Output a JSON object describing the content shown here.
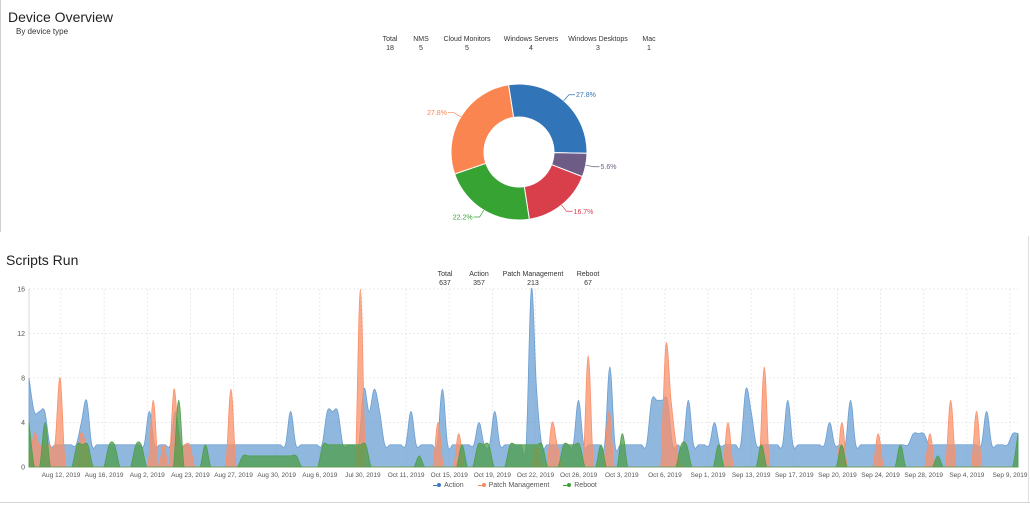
{
  "device_overview": {
    "title": "Device Overview",
    "subtitle": "By device type",
    "stats": [
      {
        "label": "Total",
        "value": "18"
      },
      {
        "label": "NMS",
        "value": "5"
      },
      {
        "label": "Cloud Monitors",
        "value": "5"
      },
      {
        "label": "Windows Servers",
        "value": "4"
      },
      {
        "label": "Windows Desktops",
        "value": "3"
      },
      {
        "label": "Mac",
        "value": "1"
      }
    ]
  },
  "scripts_run": {
    "title": "Scripts Run",
    "stats": [
      {
        "label": "Total",
        "value": "637"
      },
      {
        "label": "Action",
        "value": "357"
      },
      {
        "label": "Patch Management",
        "value": "213"
      },
      {
        "label": "Reboot",
        "value": "67"
      }
    ],
    "legend": [
      {
        "label": "Action",
        "color": "#3a7bbf"
      },
      {
        "label": "Patch Management",
        "color": "#f9875a"
      },
      {
        "label": "Reboot",
        "color": "#3ba335"
      }
    ]
  },
  "chart_data": [
    {
      "type": "pie",
      "donut": true,
      "slices": [
        {
          "value": 27.8,
          "label": "27.8%",
          "color": "#3274b8"
        },
        {
          "value": 5.6,
          "label": "5.6%",
          "color": "#6d5c85"
        },
        {
          "value": 16.7,
          "label": "16.7%",
          "color": "#d93e4b"
        },
        {
          "value": 22.2,
          "label": "22.2%",
          "color": "#36a333"
        },
        {
          "value": 27.8,
          "label": "27.8%",
          "color": "#fb8550"
        }
      ]
    },
    {
      "type": "area",
      "ylim": [
        0,
        16
      ],
      "yticks": [
        0,
        4,
        8,
        12,
        16
      ],
      "grid": true,
      "legend_position": "bottom",
      "x_tick_labels": [
        "Aug 12, 2019",
        "Aug 16, 2019",
        "Aug 2, 2019",
        "Aug 23, 2019",
        "Aug 27, 2019",
        "Aug 30, 2019",
        "Aug 6, 2019",
        "Jul 30, 2019",
        "Oct 11, 2019",
        "Oct 15, 2019",
        "Oct 19, 2019",
        "Oct 22, 2019",
        "Oct 26, 2019",
        "Oct 3, 2019",
        "Oct 6, 2019",
        "Sep 1, 2019",
        "Sep 13, 2019",
        "Sep 17, 2019",
        "Sep 20, 2019",
        "Sep 24, 2019",
        "Sep 28, 2019",
        "Sep 4, 2019",
        "Sep 9, 2019"
      ],
      "series": [
        {
          "name": "Action",
          "color": "#6b9fd3",
          "values": [
            8,
            5,
            5,
            5,
            2,
            2,
            2,
            2,
            2,
            2,
            4,
            6,
            2,
            2,
            2,
            2,
            2,
            2,
            2,
            2,
            2,
            2,
            2,
            5,
            2,
            2,
            2,
            2,
            5,
            2,
            2,
            2,
            2,
            2,
            2,
            2,
            2,
            2,
            2,
            2,
            2,
            2,
            2,
            2,
            2,
            2,
            2,
            2,
            2,
            2,
            5,
            2,
            2,
            2,
            2,
            2,
            2,
            5,
            5,
            5,
            2,
            2,
            2,
            2,
            7,
            5,
            7,
            5,
            2,
            2,
            2,
            2,
            2,
            5,
            2,
            2,
            2,
            2,
            2,
            7,
            2,
            2,
            2,
            2,
            2,
            2,
            4,
            2,
            2,
            5,
            2,
            2,
            2,
            2,
            2,
            2,
            16,
            7,
            2,
            2,
            2,
            2,
            2,
            2,
            2,
            6,
            2,
            2,
            2,
            2,
            2,
            9,
            2,
            2,
            2,
            2,
            2,
            2,
            2,
            6,
            6,
            6,
            6,
            2,
            2,
            2,
            6,
            2,
            2,
            2,
            2,
            4,
            2,
            2,
            2,
            2,
            2,
            7,
            5,
            2,
            2,
            2,
            2,
            2,
            2,
            6,
            2,
            2,
            2,
            2,
            2,
            2,
            2,
            4,
            2,
            2,
            2,
            6,
            2,
            2,
            2,
            2,
            2,
            2,
            2,
            2,
            2,
            2,
            2,
            3,
            3,
            3,
            2,
            2,
            2,
            2,
            2,
            2,
            2,
            2,
            2,
            2,
            2,
            5,
            2,
            2,
            2,
            2,
            3,
            3
          ]
        },
        {
          "name": "Patch Management",
          "color": "#f9906a",
          "values": [
            0,
            3,
            2,
            2,
            2,
            2,
            8,
            0,
            0,
            0,
            3,
            2,
            0,
            0,
            0,
            0,
            0,
            0,
            0,
            0,
            0,
            0,
            0,
            0,
            6,
            0,
            2,
            0,
            7,
            2,
            2,
            2,
            0,
            0,
            0,
            0,
            0,
            0,
            0,
            7,
            0,
            0,
            0,
            0,
            0,
            0,
            0,
            0,
            0,
            0,
            0,
            0,
            0,
            0,
            0,
            0,
            0,
            0,
            0,
            0,
            0,
            0,
            0,
            0,
            16,
            0,
            0,
            0,
            0,
            0,
            0,
            0,
            0,
            0,
            0,
            0,
            0,
            0,
            0,
            4,
            0,
            0,
            0,
            3,
            0,
            0,
            0,
            0,
            0,
            0,
            0,
            0,
            0,
            0,
            0,
            0,
            0,
            0,
            2,
            0,
            0,
            4,
            2,
            0,
            0,
            0,
            0,
            0,
            10,
            0,
            0,
            0,
            5,
            0,
            0,
            0,
            0,
            0,
            0,
            0,
            0,
            0,
            0,
            11,
            6,
            2,
            0,
            0,
            0,
            0,
            0,
            0,
            0,
            0,
            0,
            4,
            0,
            0,
            0,
            0,
            0,
            0,
            9,
            0,
            0,
            0,
            0,
            0,
            0,
            0,
            0,
            0,
            0,
            0,
            0,
            0,
            0,
            4,
            0,
            0,
            0,
            0,
            0,
            0,
            3,
            0,
            0,
            0,
            0,
            0,
            0,
            0,
            0,
            0,
            3,
            0,
            0,
            0,
            6,
            0,
            0,
            0,
            0,
            5,
            0,
            0,
            0,
            0,
            0,
            0,
            0,
            0
          ]
        },
        {
          "name": "Reboot",
          "color": "#4e9e4a",
          "values": [
            4,
            0,
            0,
            4,
            0,
            0,
            0,
            0,
            0,
            2,
            2,
            2,
            0,
            0,
            0,
            2,
            2,
            0,
            0,
            0,
            2,
            2,
            0,
            0,
            0,
            0,
            0,
            0,
            6,
            0,
            0,
            0,
            0,
            2,
            0,
            0,
            0,
            0,
            0,
            0,
            1,
            1,
            1,
            1,
            1,
            1,
            1,
            1,
            1,
            1,
            1,
            0,
            0,
            0,
            0,
            2,
            2,
            2,
            2,
            2,
            2,
            2,
            2,
            2,
            0,
            0,
            0,
            0,
            0,
            0,
            0,
            0,
            0,
            1,
            0,
            0,
            0,
            0,
            0,
            0,
            0,
            2,
            0,
            0,
            2,
            2,
            2,
            0,
            0,
            0,
            2,
            2,
            2,
            2,
            2,
            2,
            2,
            0,
            0,
            0,
            2,
            2,
            2,
            2,
            0,
            0,
            0,
            2,
            0,
            0,
            0,
            3,
            0,
            0,
            0,
            0,
            0,
            0,
            0,
            0,
            0,
            0,
            2,
            2,
            0,
            0,
            0,
            0,
            0,
            2,
            0,
            0,
            0,
            0,
            0,
            0,
            0,
            2,
            0,
            0,
            0,
            0,
            0,
            0,
            0,
            0,
            0,
            0,
            0,
            0,
            0,
            0,
            2,
            0,
            0,
            0,
            0,
            0,
            0,
            0,
            0,
            0,
            0,
            2,
            0,
            0,
            0,
            0,
            0,
            0,
            1,
            0,
            0,
            0,
            0,
            0,
            0,
            0,
            0,
            0,
            0,
            0,
            0,
            0,
            0,
            3
          ]
        }
      ]
    }
  ]
}
